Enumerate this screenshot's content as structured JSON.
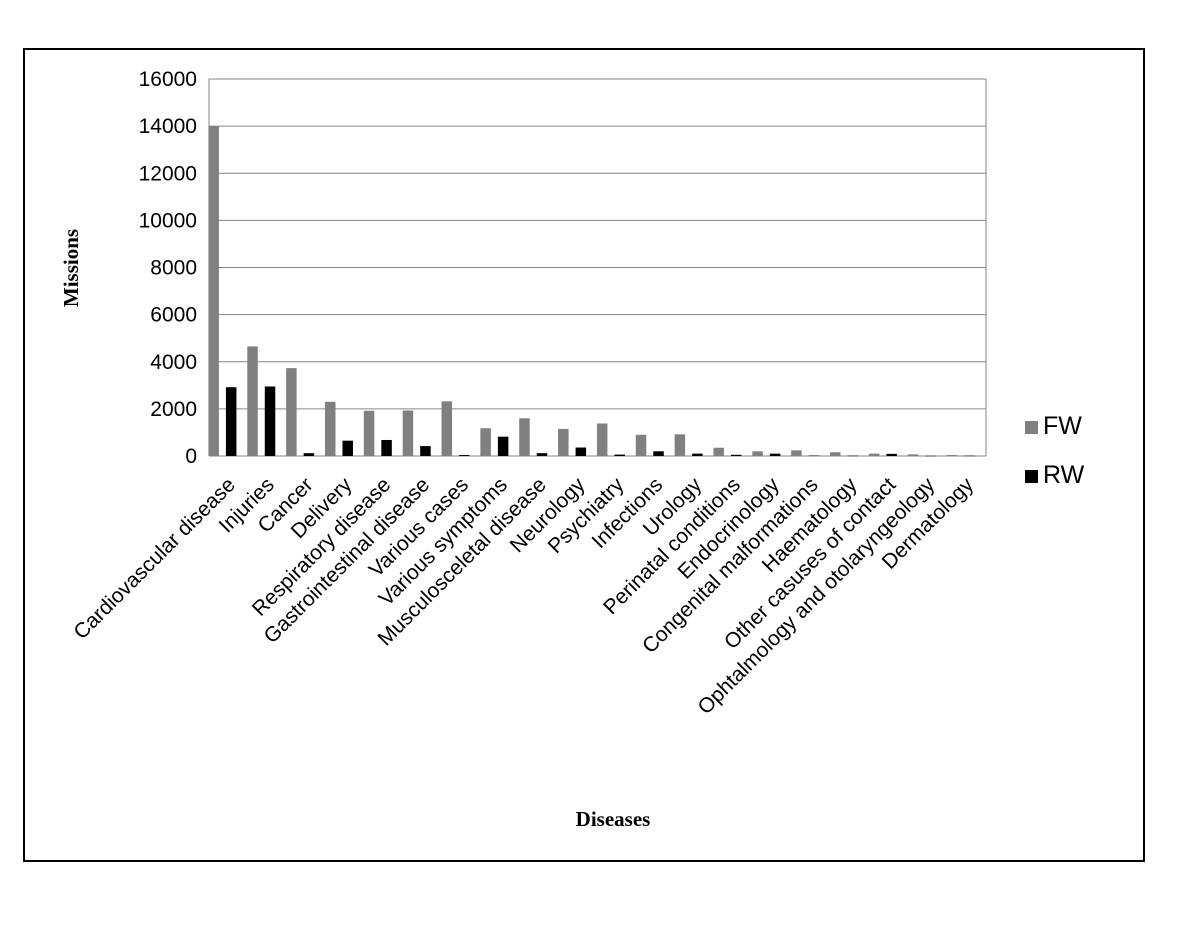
{
  "chart_data": {
    "type": "bar",
    "title": "",
    "xlabel": "Diseases",
    "ylabel": "Missions",
    "ylim": [
      0,
      16000
    ],
    "yticks": [
      0,
      2000,
      4000,
      6000,
      8000,
      10000,
      12000,
      14000,
      16000
    ],
    "grid": "horizontal",
    "legend_position": "right",
    "categories": [
      "Cardiovascular disease",
      "Injuries",
      "Cancer",
      "Delivery",
      "Respiratory disease",
      "Gastrointestinal disease",
      "Various cases",
      "Various symptoms",
      "Musculosceletal disease",
      "Neurology",
      "Psychiatry",
      "Infections",
      "Urology",
      "Perinatal conditions",
      "Endocrinology",
      "Congenital malformations",
      "Haematology",
      "Other casuses of contact",
      "Ophtalmology and otolaryngeology",
      "Dermatology"
    ],
    "series": [
      {
        "name": "FW",
        "color": "#808080",
        "values": [
          14000,
          4650,
          3730,
          2300,
          1920,
          1930,
          2320,
          1180,
          1600,
          1150,
          1380,
          900,
          920,
          350,
          200,
          240,
          160,
          100,
          70,
          40
        ]
      },
      {
        "name": "RW",
        "color": "#000000",
        "values": [
          2920,
          2950,
          120,
          650,
          680,
          420,
          40,
          820,
          120,
          360,
          60,
          200,
          100,
          50,
          100,
          20,
          15,
          90,
          10,
          15
        ]
      }
    ]
  }
}
